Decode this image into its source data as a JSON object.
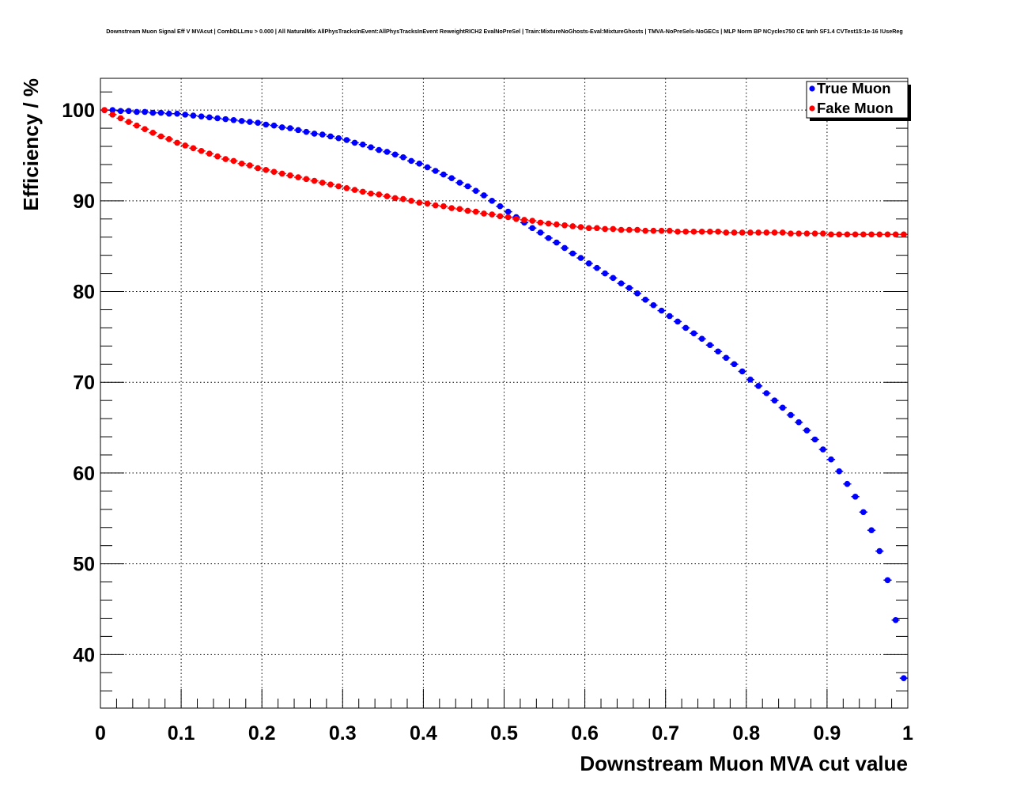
{
  "chart_data": {
    "type": "scatter",
    "title": "Downstream Muon Signal Eff V MVAcut | CombDLLmu > 0.000 | All NaturalMix AllPhysTracksInEvent:AllPhysTracksInEvent ReweightRICH2 EvalNoPreSel | Train:MixtureNoGhosts-Eval:MixtureGhosts | TMVA-NoPreSels-NoGECs | MLP Norm BP NCycles750 CE tanh SF1.4 CVTest15:1e-16 !UseReg",
    "xlabel": "Downstream Muon MVA cut value",
    "ylabel": "Efficiency / %",
    "xlim": [
      0,
      1
    ],
    "ylim": [
      34.1,
      103.5
    ],
    "x_ticks": [
      0,
      0.1,
      0.2,
      0.3,
      0.4,
      0.5,
      0.6,
      0.7,
      0.8,
      0.9,
      1
    ],
    "x_tick_labels": [
      "0",
      "0.1",
      "0.2",
      "0.3",
      "0.4",
      "0.5",
      "0.6",
      "0.7",
      "0.8",
      "0.9",
      "1"
    ],
    "y_ticks": [
      40,
      50,
      60,
      70,
      80,
      90,
      100
    ],
    "y_tick_labels": [
      "40",
      "50",
      "60",
      "70",
      "80",
      "90",
      "100"
    ],
    "grid": true,
    "legend_position": "top-right",
    "x_start": 0.005,
    "x_step": 0.01,
    "series": [
      {
        "name": "True Muon",
        "color": "#0000ff",
        "values": [
          100.0,
          100.0,
          99.9,
          99.9,
          99.8,
          99.8,
          99.7,
          99.7,
          99.6,
          99.6,
          99.5,
          99.4,
          99.3,
          99.2,
          99.1,
          99.0,
          98.9,
          98.8,
          98.7,
          98.6,
          98.4,
          98.3,
          98.1,
          98.0,
          97.8,
          97.6,
          97.4,
          97.3,
          97.1,
          96.9,
          96.7,
          96.4,
          96.2,
          95.9,
          95.6,
          95.4,
          95.1,
          94.8,
          94.4,
          94.1,
          93.7,
          93.3,
          92.9,
          92.5,
          92.0,
          91.6,
          91.1,
          90.6,
          90.0,
          89.4,
          88.8,
          88.2,
          87.6,
          87.0,
          86.5,
          85.9,
          85.4,
          84.8,
          84.2,
          83.7,
          83.1,
          82.6,
          82.0,
          81.5,
          80.9,
          80.4,
          79.8,
          79.1,
          78.5,
          77.9,
          77.3,
          76.7,
          76.0,
          75.4,
          74.8,
          74.1,
          73.4,
          72.7,
          72.0,
          71.2,
          70.3,
          69.6,
          68.8,
          68.0,
          67.2,
          66.4,
          65.6,
          64.7,
          63.7,
          62.6,
          61.5,
          60.2,
          58.8,
          57.4,
          55.7,
          53.7,
          51.4,
          48.2,
          43.8,
          37.4
        ]
      },
      {
        "name": "Fake Muon",
        "color": "#ff0000",
        "values": [
          100.0,
          99.5,
          99.1,
          98.7,
          98.3,
          97.9,
          97.5,
          97.1,
          96.8,
          96.4,
          96.1,
          95.8,
          95.5,
          95.2,
          94.9,
          94.6,
          94.4,
          94.1,
          93.9,
          93.6,
          93.4,
          93.2,
          93.0,
          92.8,
          92.6,
          92.4,
          92.2,
          92.0,
          91.8,
          91.6,
          91.4,
          91.2,
          91.0,
          90.8,
          90.7,
          90.5,
          90.3,
          90.2,
          90.0,
          89.8,
          89.7,
          89.5,
          89.4,
          89.2,
          89.1,
          88.9,
          88.8,
          88.6,
          88.5,
          88.3,
          88.2,
          88.0,
          87.9,
          87.8,
          87.6,
          87.5,
          87.4,
          87.3,
          87.2,
          87.1,
          87.0,
          87.0,
          86.9,
          86.9,
          86.8,
          86.8,
          86.8,
          86.7,
          86.7,
          86.7,
          86.7,
          86.6,
          86.6,
          86.6,
          86.6,
          86.6,
          86.6,
          86.5,
          86.5,
          86.5,
          86.5,
          86.5,
          86.5,
          86.5,
          86.5,
          86.4,
          86.4,
          86.4,
          86.4,
          86.4,
          86.3,
          86.3,
          86.3,
          86.3,
          86.3,
          86.3,
          86.3,
          86.3,
          86.3,
          86.3
        ]
      }
    ]
  }
}
